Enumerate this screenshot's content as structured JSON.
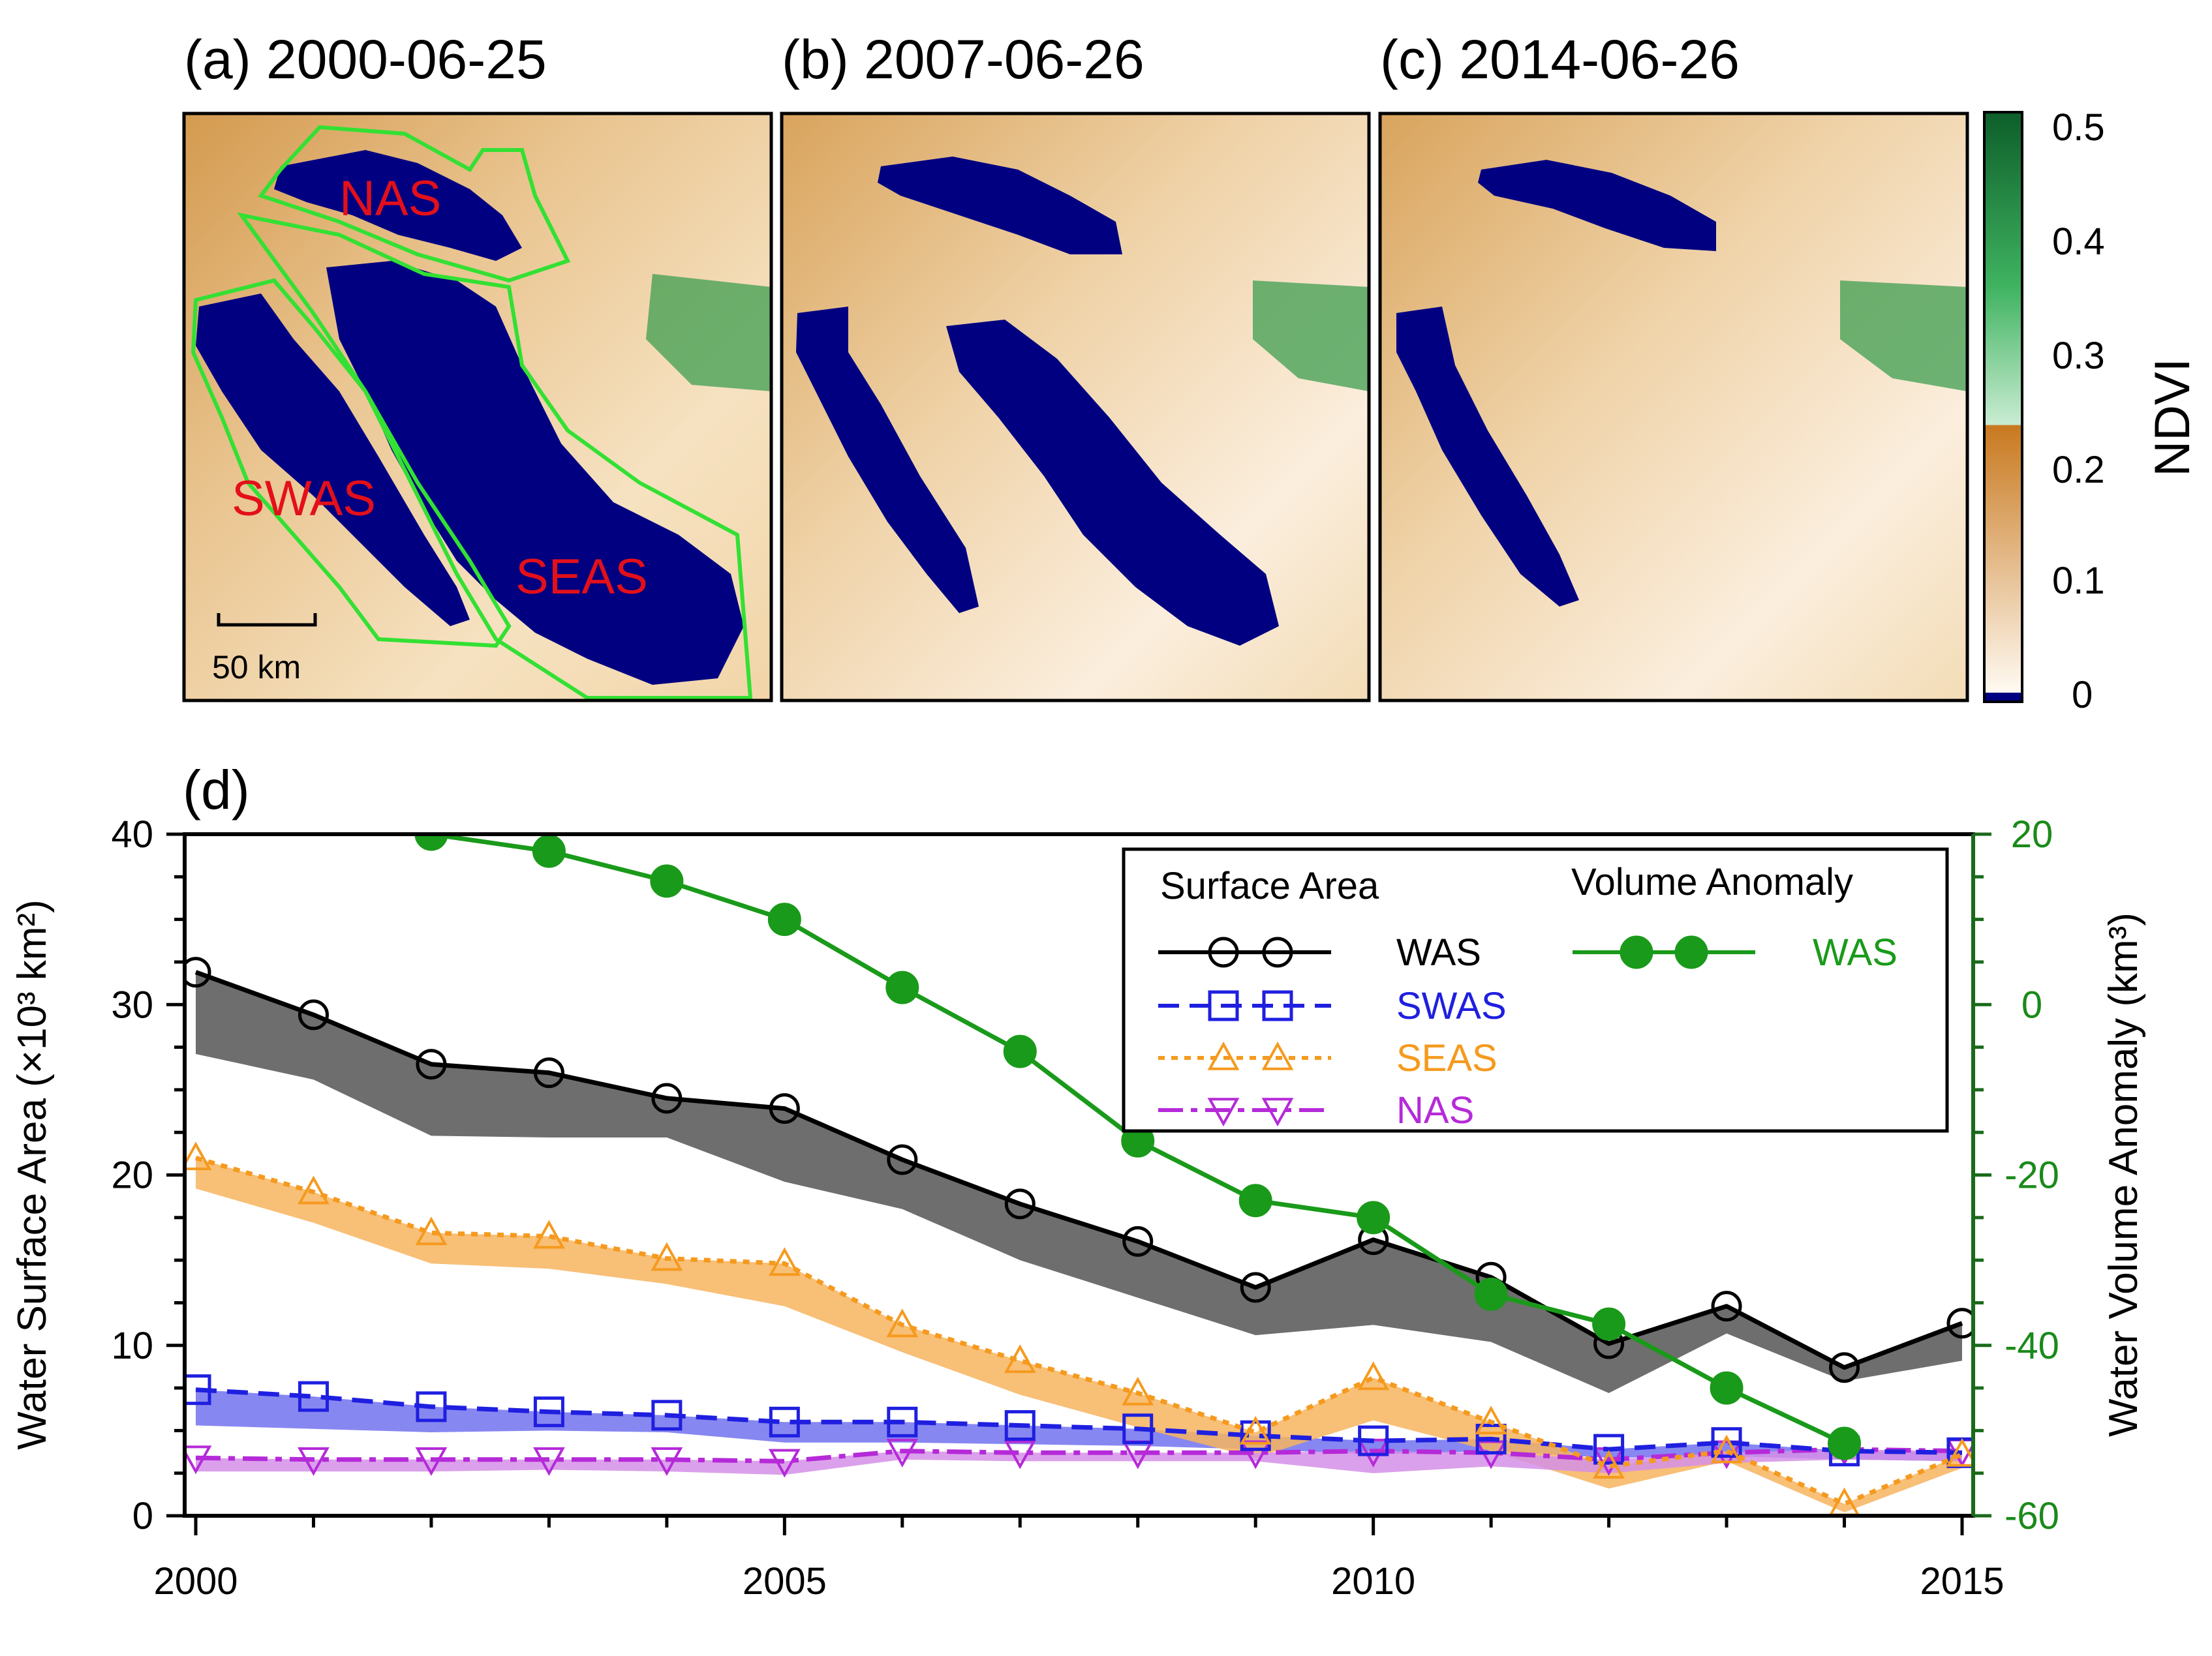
{
  "panels": [
    {
      "id": "a",
      "title": "(a) 2000-06-25",
      "regions": [
        "NAS",
        "SWAS",
        "SEAS"
      ],
      "scale_label": "50 km"
    },
    {
      "id": "b",
      "title": "(b) 2007-06-26"
    },
    {
      "id": "c",
      "title": "(c) 2014-06-26"
    }
  ],
  "colorbar": {
    "label": "NDVI",
    "ticks": [
      "0.5",
      "0.4",
      "0.3",
      "0.2",
      "0.1",
      "0"
    ],
    "colors": {
      "water": "#000080",
      "desert_low": "#fff4e4",
      "desert_high": "#c8791f",
      "veg_low": "#bfe9c8",
      "veg_high": "#0d5e2a"
    }
  },
  "panel_d": {
    "label": "(d)"
  },
  "colors": {
    "WAS": "#000000",
    "SWAS": "#1f1fe0",
    "SEAS": "#f59a1e",
    "NAS": "#b52ad8",
    "volume": "#1a9a1a",
    "volume_axis": "#1a6a1a"
  },
  "chart_data": {
    "type": "line",
    "title": "(d)",
    "xlabel": "",
    "ylabel": "Water Surface Area (×10³ km²)",
    "ylabel_right": "Water Volume Anomaly (km³)",
    "xlim": [
      2000,
      2015
    ],
    "ylim": [
      0,
      40
    ],
    "ylim_right": [
      -60,
      20
    ],
    "xticks": [
      "2000",
      "2005",
      "2010",
      "2015"
    ],
    "yticks": [
      "0",
      "10",
      "20",
      "30",
      "40"
    ],
    "yticks_right": [
      "-60",
      "-40",
      "-20",
      "0",
      "20"
    ],
    "legend": {
      "surface_title": "Surface Area",
      "volume_title": "Volume Anomaly"
    },
    "x": [
      2000,
      2001,
      2002,
      2003,
      2004,
      2005,
      2006,
      2007,
      2008,
      2009,
      2010,
      2011,
      2012,
      2013,
      2014,
      2015
    ],
    "series": [
      {
        "name": "WAS",
        "axis": "left",
        "style": "solid-circle",
        "values": [
          31.9,
          29.4,
          26.5,
          26.0,
          24.5,
          23.9,
          20.9,
          18.3,
          16.1,
          13.4,
          16.2,
          14.0,
          10.1,
          12.3,
          8.7,
          11.3
        ],
        "band_low": [
          27.1,
          25.6,
          22.3,
          22.2,
          22.2,
          19.6,
          18.0,
          15.0,
          12.8,
          10.6,
          11.2,
          10.2,
          7.2,
          10.7,
          7.9,
          9.1
        ]
      },
      {
        "name": "SWAS",
        "axis": "left",
        "style": "dashed-square",
        "values": [
          7.4,
          7.0,
          6.4,
          6.1,
          5.9,
          5.5,
          5.5,
          5.3,
          5.1,
          4.7,
          4.4,
          4.5,
          3.9,
          4.3,
          3.8,
          3.7
        ],
        "band_low": [
          5.3,
          5.1,
          4.9,
          5.0,
          4.9,
          4.3,
          4.3,
          4.2,
          4.1,
          3.9,
          3.6,
          3.8,
          3.4,
          3.5,
          3.3,
          3.2
        ]
      },
      {
        "name": "SEAS",
        "axis": "left",
        "style": "dotted-triangle-up",
        "values": [
          21.0,
          19.0,
          16.6,
          16.4,
          15.1,
          14.8,
          11.2,
          9.1,
          7.2,
          4.9,
          8.1,
          5.5,
          2.9,
          3.8,
          0.7,
          3.6
        ],
        "band_low": [
          19.2,
          17.2,
          14.8,
          14.5,
          13.6,
          12.3,
          9.6,
          7.1,
          5.2,
          3.4,
          5.6,
          3.8,
          1.6,
          3.2,
          0.2,
          2.8
        ]
      },
      {
        "name": "NAS",
        "axis": "left",
        "style": "dashdot-triangle-down",
        "values": [
          3.4,
          3.3,
          3.3,
          3.3,
          3.3,
          3.2,
          3.8,
          3.7,
          3.7,
          3.7,
          3.8,
          3.7,
          3.3,
          3.7,
          3.9,
          3.8
        ],
        "band_low": [
          2.6,
          2.6,
          2.6,
          2.7,
          2.6,
          2.4,
          3.3,
          3.2,
          3.2,
          3.2,
          2.5,
          2.9,
          2.5,
          3.1,
          3.3,
          3.2
        ]
      },
      {
        "name": "WAS",
        "axis": "right",
        "style": "solid-filled-circle",
        "x": [
          2002,
          2003,
          2004,
          2005,
          2006,
          2007,
          2008,
          2009,
          2010,
          2011,
          2012,
          2013,
          2014
        ],
        "values": [
          20.0,
          18.0,
          14.5,
          10.0,
          2.0,
          -5.5,
          -16.0,
          -23.0,
          -25.0,
          -34.0,
          -37.5,
          -45.0,
          -51.5
        ]
      }
    ]
  }
}
